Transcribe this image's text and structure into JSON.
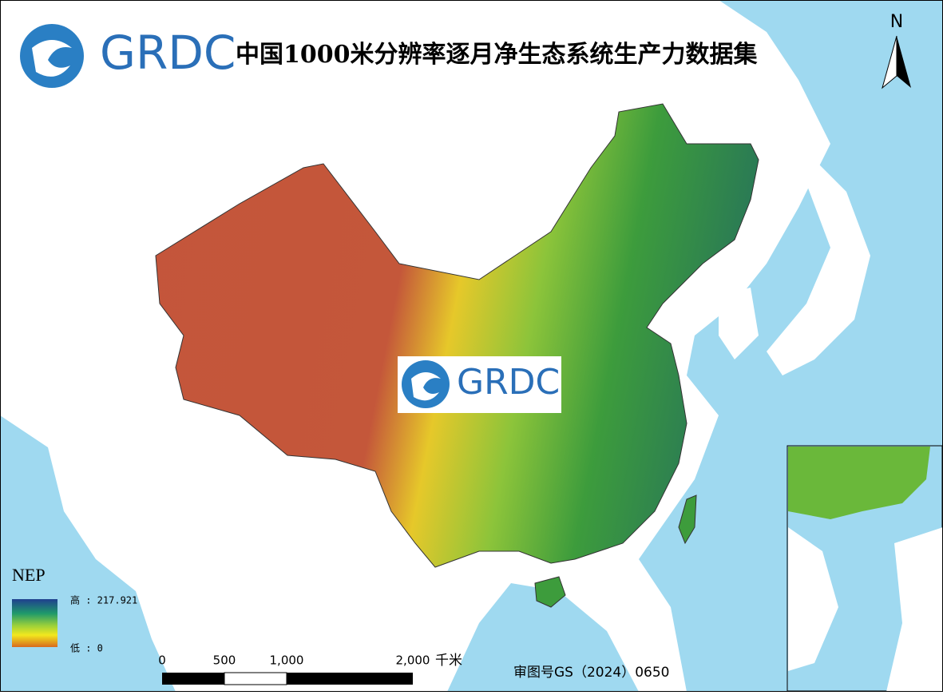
{
  "header": {
    "logo": "GRDC",
    "title": "中国1000米分辨率逐月净生态系统生产力数据集"
  },
  "north": "N",
  "watermark": "GRDC",
  "legend": {
    "title": "NEP",
    "high": "高 : 217.921",
    "low": "低 : 0"
  },
  "scale_bar": {
    "labels": [
      "0",
      "500",
      "1,000",
      "2,000"
    ],
    "unit": "千米"
  },
  "approval": "审图号GS（2024）0650"
}
